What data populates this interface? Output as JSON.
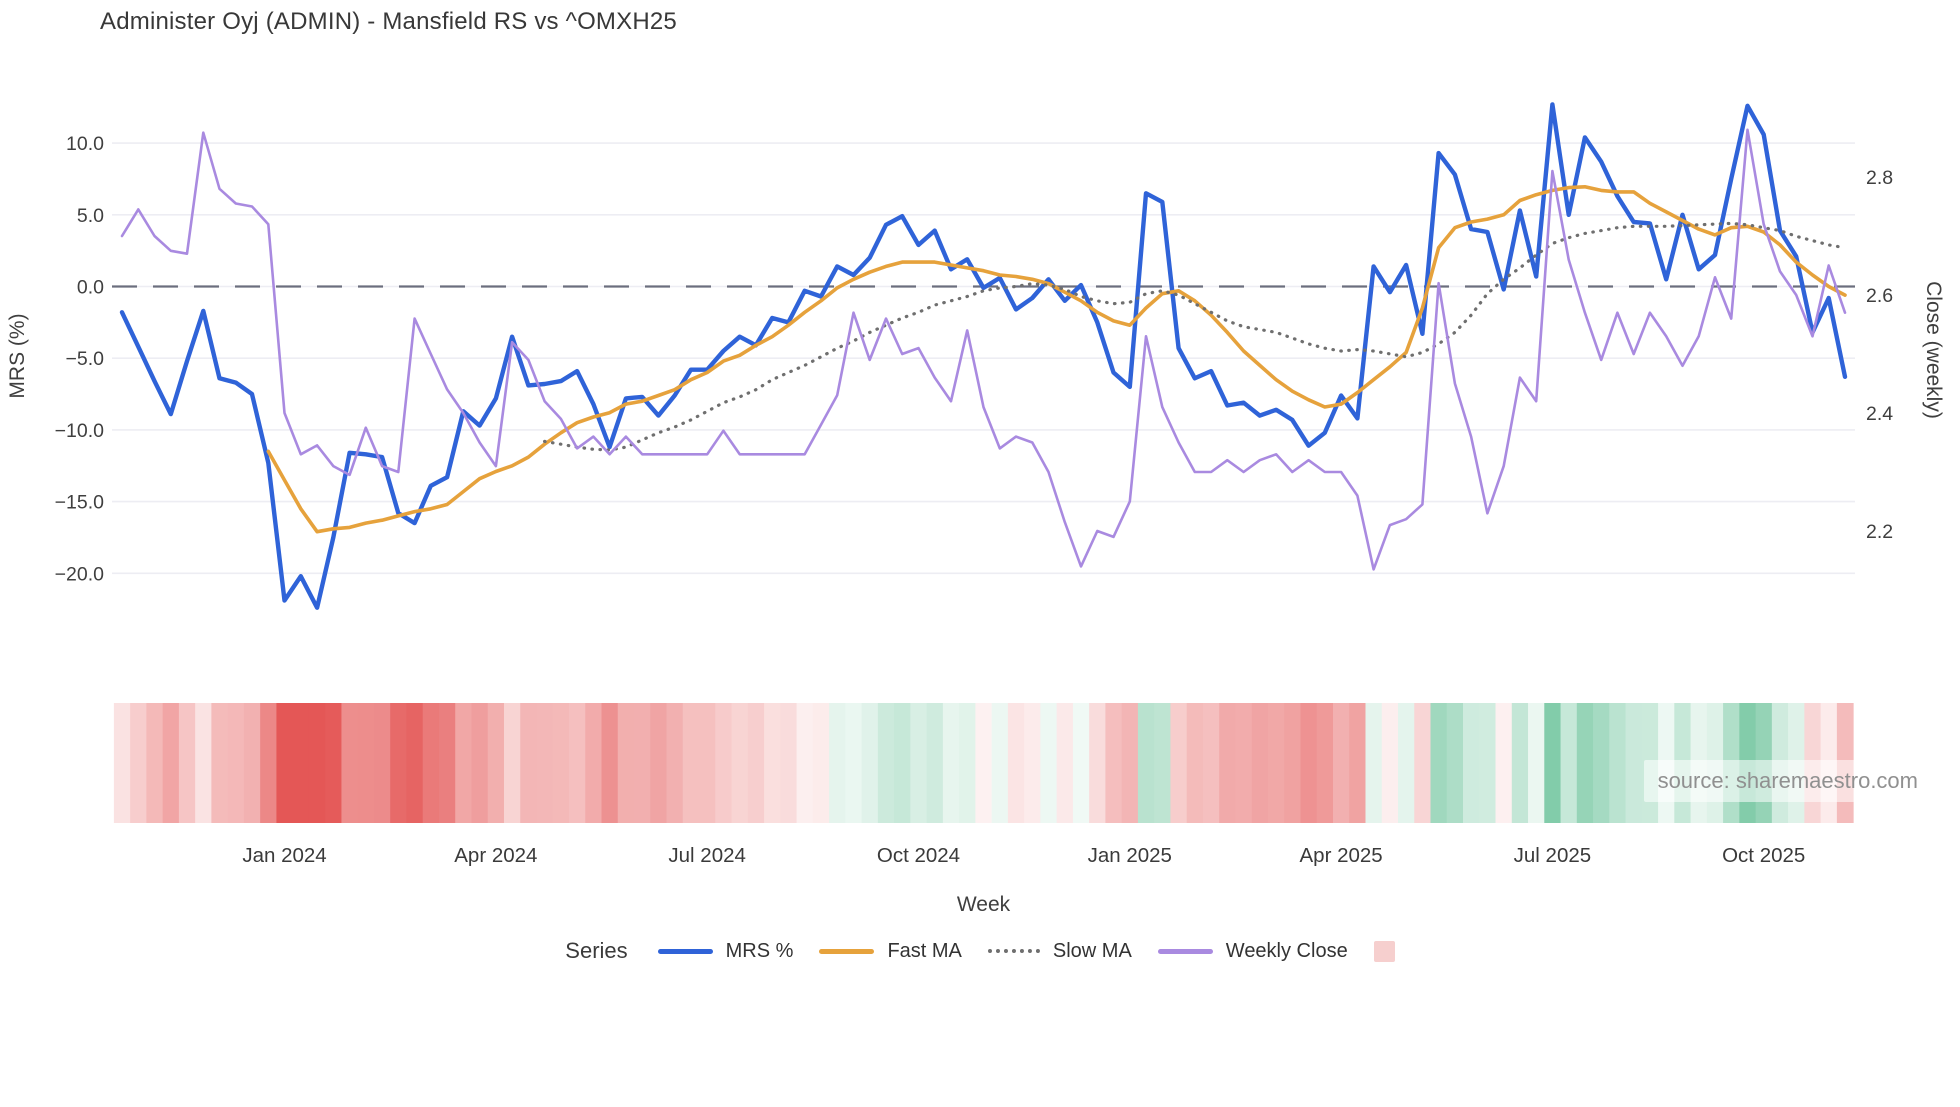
{
  "title": "Administer Oyj (ADMIN) - Mansfield RS vs ^OMXH25",
  "source_watermark": "source: sharemaestro.com",
  "legend": {
    "label": "Series",
    "items": [
      {
        "label": "MRS %",
        "swatch": "line",
        "color": "#2f63d8"
      },
      {
        "label": "Fast MA",
        "swatch": "line",
        "color": "#e6a23c"
      },
      {
        "label": "Slow MA",
        "swatch": "dotted",
        "color": "#6f6f6f"
      },
      {
        "label": "Weekly Close",
        "swatch": "line",
        "color": "#a98ae0"
      },
      {
        "label": "",
        "swatch": "square",
        "color": "#f6cfce"
      }
    ]
  },
  "chart_data": {
    "type": "line",
    "title": "Administer Oyj (ADMIN) - Mansfield RS vs ^OMXH25",
    "xlabel": "Week",
    "ylabel_left": "MRS (%)",
    "ylabel_right": "Close (weekly)",
    "grid": "horizontal-light",
    "zero_line": {
      "value": 0.0,
      "style": "dashed",
      "color": "#55596a"
    },
    "x_unit": "weekly, late Oct 2023 - early Nov 2025",
    "n_weeks": 107,
    "x_tick_labels": [
      "Jan 2024",
      "Apr 2024",
      "Jul 2024",
      "Oct 2024",
      "Jan 2025",
      "Apr 2025",
      "Jul 2025",
      "Oct 2025"
    ],
    "x_tick_weeks": [
      10,
      23,
      36,
      49,
      62,
      75,
      88,
      101
    ],
    "yticks_left": {
      "values": [
        10.0,
        5.0,
        0.0,
        -5.0,
        -10.0,
        -15.0,
        -20.0
      ],
      "labels": [
        "10.0",
        "5.0",
        "0.0",
        "−5.0",
        "−10.0",
        "−15.0",
        "−20.0"
      ]
    },
    "ylim_left": [
      -25.0,
      14.0
    ],
    "yticks_right": {
      "values": [
        2.8,
        2.6,
        2.4,
        2.2
      ],
      "labels": [
        "2.8",
        "2.6",
        "2.4",
        "2.2"
      ]
    },
    "ylim_right": [
      2.08,
      2.94
    ],
    "legend_position": "bottom-center",
    "series": [
      {
        "name": "MRS %",
        "axis": "left",
        "color": "#2f63d8",
        "style": "solid",
        "width": 4.4,
        "values": [
          -1.8,
          -4.2,
          -6.6,
          -8.9,
          -5.2,
          -1.7,
          -6.4,
          -6.7,
          -7.5,
          -12.3,
          -21.9,
          -20.2,
          -22.4,
          -17.5,
          -11.6,
          -11.7,
          -11.9,
          -15.8,
          -16.5,
          -13.9,
          -13.3,
          -8.7,
          -9.7,
          -7.8,
          -3.5,
          -6.9,
          -6.8,
          -6.6,
          -5.9,
          -8.2,
          -11.2,
          -7.8,
          -7.7,
          -9.0,
          -7.6,
          -5.8,
          -5.8,
          -4.5,
          -3.5,
          -4.1,
          -2.2,
          -2.5,
          -0.3,
          -0.7,
          1.4,
          0.8,
          2.0,
          4.3,
          4.9,
          2.9,
          3.9,
          1.2,
          1.9,
          -0.1,
          0.6,
          -1.6,
          -0.8,
          0.5,
          -1.0,
          0.1,
          -2.5,
          -6.0,
          -7.0,
          6.5,
          5.9,
          -4.3,
          -6.4,
          -5.9,
          -8.3,
          -8.1,
          -9.0,
          -8.6,
          -9.3,
          -11.1,
          -10.2,
          -7.6,
          -9.2,
          1.4,
          -0.4,
          1.5,
          -3.3,
          9.3,
          7.8,
          4.0,
          3.8,
          -0.2,
          5.3,
          0.7,
          12.7,
          5.0,
          10.4,
          8.7,
          6.3,
          4.5,
          4.4,
          0.5,
          5.0,
          1.2,
          2.2,
          7.5,
          12.6,
          10.6,
          3.9,
          2.1,
          -3.2,
          -0.8,
          -6.3
        ]
      },
      {
        "name": "Fast MA",
        "axis": "left",
        "color": "#e6a23c",
        "style": "solid",
        "width": 3.6,
        "values": [
          null,
          null,
          null,
          null,
          null,
          null,
          null,
          null,
          null,
          -11.5,
          -13.5,
          -15.5,
          -17.1,
          -16.9,
          -16.8,
          -16.5,
          -16.3,
          -16.0,
          -15.7,
          -15.5,
          -15.2,
          -14.3,
          -13.4,
          -12.9,
          -12.5,
          -11.9,
          -11.0,
          -10.2,
          -9.5,
          -9.1,
          -8.8,
          -8.2,
          -8.0,
          -7.6,
          -7.2,
          -6.5,
          -6.0,
          -5.2,
          -4.8,
          -4.1,
          -3.5,
          -2.7,
          -1.8,
          -1.0,
          -0.1,
          0.5,
          1.0,
          1.4,
          1.7,
          1.7,
          1.7,
          1.5,
          1.3,
          1.1,
          0.8,
          0.7,
          0.5,
          0.2,
          -0.4,
          -1.0,
          -1.8,
          -2.4,
          -2.7,
          -1.5,
          -0.5,
          -0.3,
          -1.0,
          -2.0,
          -3.2,
          -4.5,
          -5.5,
          -6.5,
          -7.3,
          -7.9,
          -8.4,
          -8.2,
          -7.4,
          -6.5,
          -5.6,
          -4.6,
          -1.5,
          2.7,
          4.1,
          4.5,
          4.7,
          5.0,
          6.0,
          6.4,
          6.7,
          6.9,
          6.95,
          6.7,
          6.6,
          6.6,
          5.8,
          5.2,
          4.6,
          4.0,
          3.6,
          4.1,
          4.2,
          3.8,
          2.9,
          1.7,
          0.8,
          0.0,
          -0.6
        ]
      },
      {
        "name": "Slow MA",
        "axis": "left",
        "color": "#6f6f6f",
        "style": "dotted",
        "width": 3.2,
        "values": [
          null,
          null,
          null,
          null,
          null,
          null,
          null,
          null,
          null,
          null,
          null,
          null,
          null,
          null,
          null,
          null,
          null,
          null,
          null,
          null,
          null,
          null,
          null,
          null,
          null,
          null,
          -10.8,
          -11.0,
          -11.2,
          -11.35,
          -11.4,
          -11.2,
          -10.7,
          -10.2,
          -9.8,
          -9.3,
          -8.7,
          -8.1,
          -7.7,
          -7.2,
          -6.5,
          -6.0,
          -5.5,
          -4.9,
          -4.3,
          -3.8,
          -3.2,
          -2.7,
          -2.2,
          -1.8,
          -1.3,
          -1.0,
          -0.7,
          -0.3,
          -0.1,
          0.0,
          0.2,
          0.1,
          -0.2,
          -0.7,
          -1.0,
          -1.2,
          -1.1,
          -0.5,
          -0.3,
          -0.6,
          -1.2,
          -1.8,
          -2.4,
          -2.8,
          -3.0,
          -3.2,
          -3.6,
          -4.0,
          -4.3,
          -4.5,
          -4.4,
          -4.5,
          -4.7,
          -4.9,
          -4.6,
          -4.0,
          -3.2,
          -2.0,
          -0.5,
          0.5,
          1.3,
          2.2,
          3.0,
          3.4,
          3.7,
          3.9,
          4.1,
          4.2,
          4.2,
          4.2,
          4.25,
          4.3,
          4.35,
          4.4,
          4.3,
          4.1,
          3.9,
          3.5,
          3.2,
          2.9,
          2.7
        ]
      },
      {
        "name": "Weekly Close",
        "axis": "right",
        "color": "#a98ae0",
        "style": "solid",
        "width": 2.6,
        "values": [
          2.7,
          2.745,
          2.7,
          2.675,
          2.67,
          2.875,
          2.78,
          2.755,
          2.75,
          2.72,
          2.4,
          2.33,
          2.345,
          2.31,
          2.295,
          2.375,
          2.31,
          2.3,
          2.56,
          2.5,
          2.44,
          2.4,
          2.35,
          2.31,
          2.52,
          2.49,
          2.42,
          2.39,
          2.34,
          2.36,
          2.33,
          2.36,
          2.33,
          2.33,
          2.33,
          2.33,
          2.33,
          2.37,
          2.33,
          2.33,
          2.33,
          2.33,
          2.33,
          2.38,
          2.43,
          2.57,
          2.49,
          2.56,
          2.5,
          2.51,
          2.46,
          2.42,
          2.54,
          2.41,
          2.34,
          2.36,
          2.35,
          2.3,
          2.215,
          2.14,
          2.2,
          2.19,
          2.25,
          2.53,
          2.41,
          2.35,
          2.3,
          2.3,
          2.32,
          2.3,
          2.32,
          2.33,
          2.3,
          2.32,
          2.3,
          2.3,
          2.26,
          2.135,
          2.21,
          2.22,
          2.245,
          2.62,
          2.45,
          2.36,
          2.23,
          2.31,
          2.46,
          2.42,
          2.81,
          2.66,
          2.57,
          2.49,
          2.57,
          2.5,
          2.57,
          2.53,
          2.48,
          2.53,
          2.63,
          2.56,
          2.88,
          2.72,
          2.64,
          2.6,
          2.53,
          2.65,
          2.57
        ]
      }
    ],
    "heatmap_strip": {
      "based_on": "MRS %",
      "rule": "one cell per week; red shades for negative MRS, green shades for positive MRS, intensity scales with |MRS|",
      "negative_color": "#e45756",
      "positive_color": "#54b98a"
    }
  }
}
